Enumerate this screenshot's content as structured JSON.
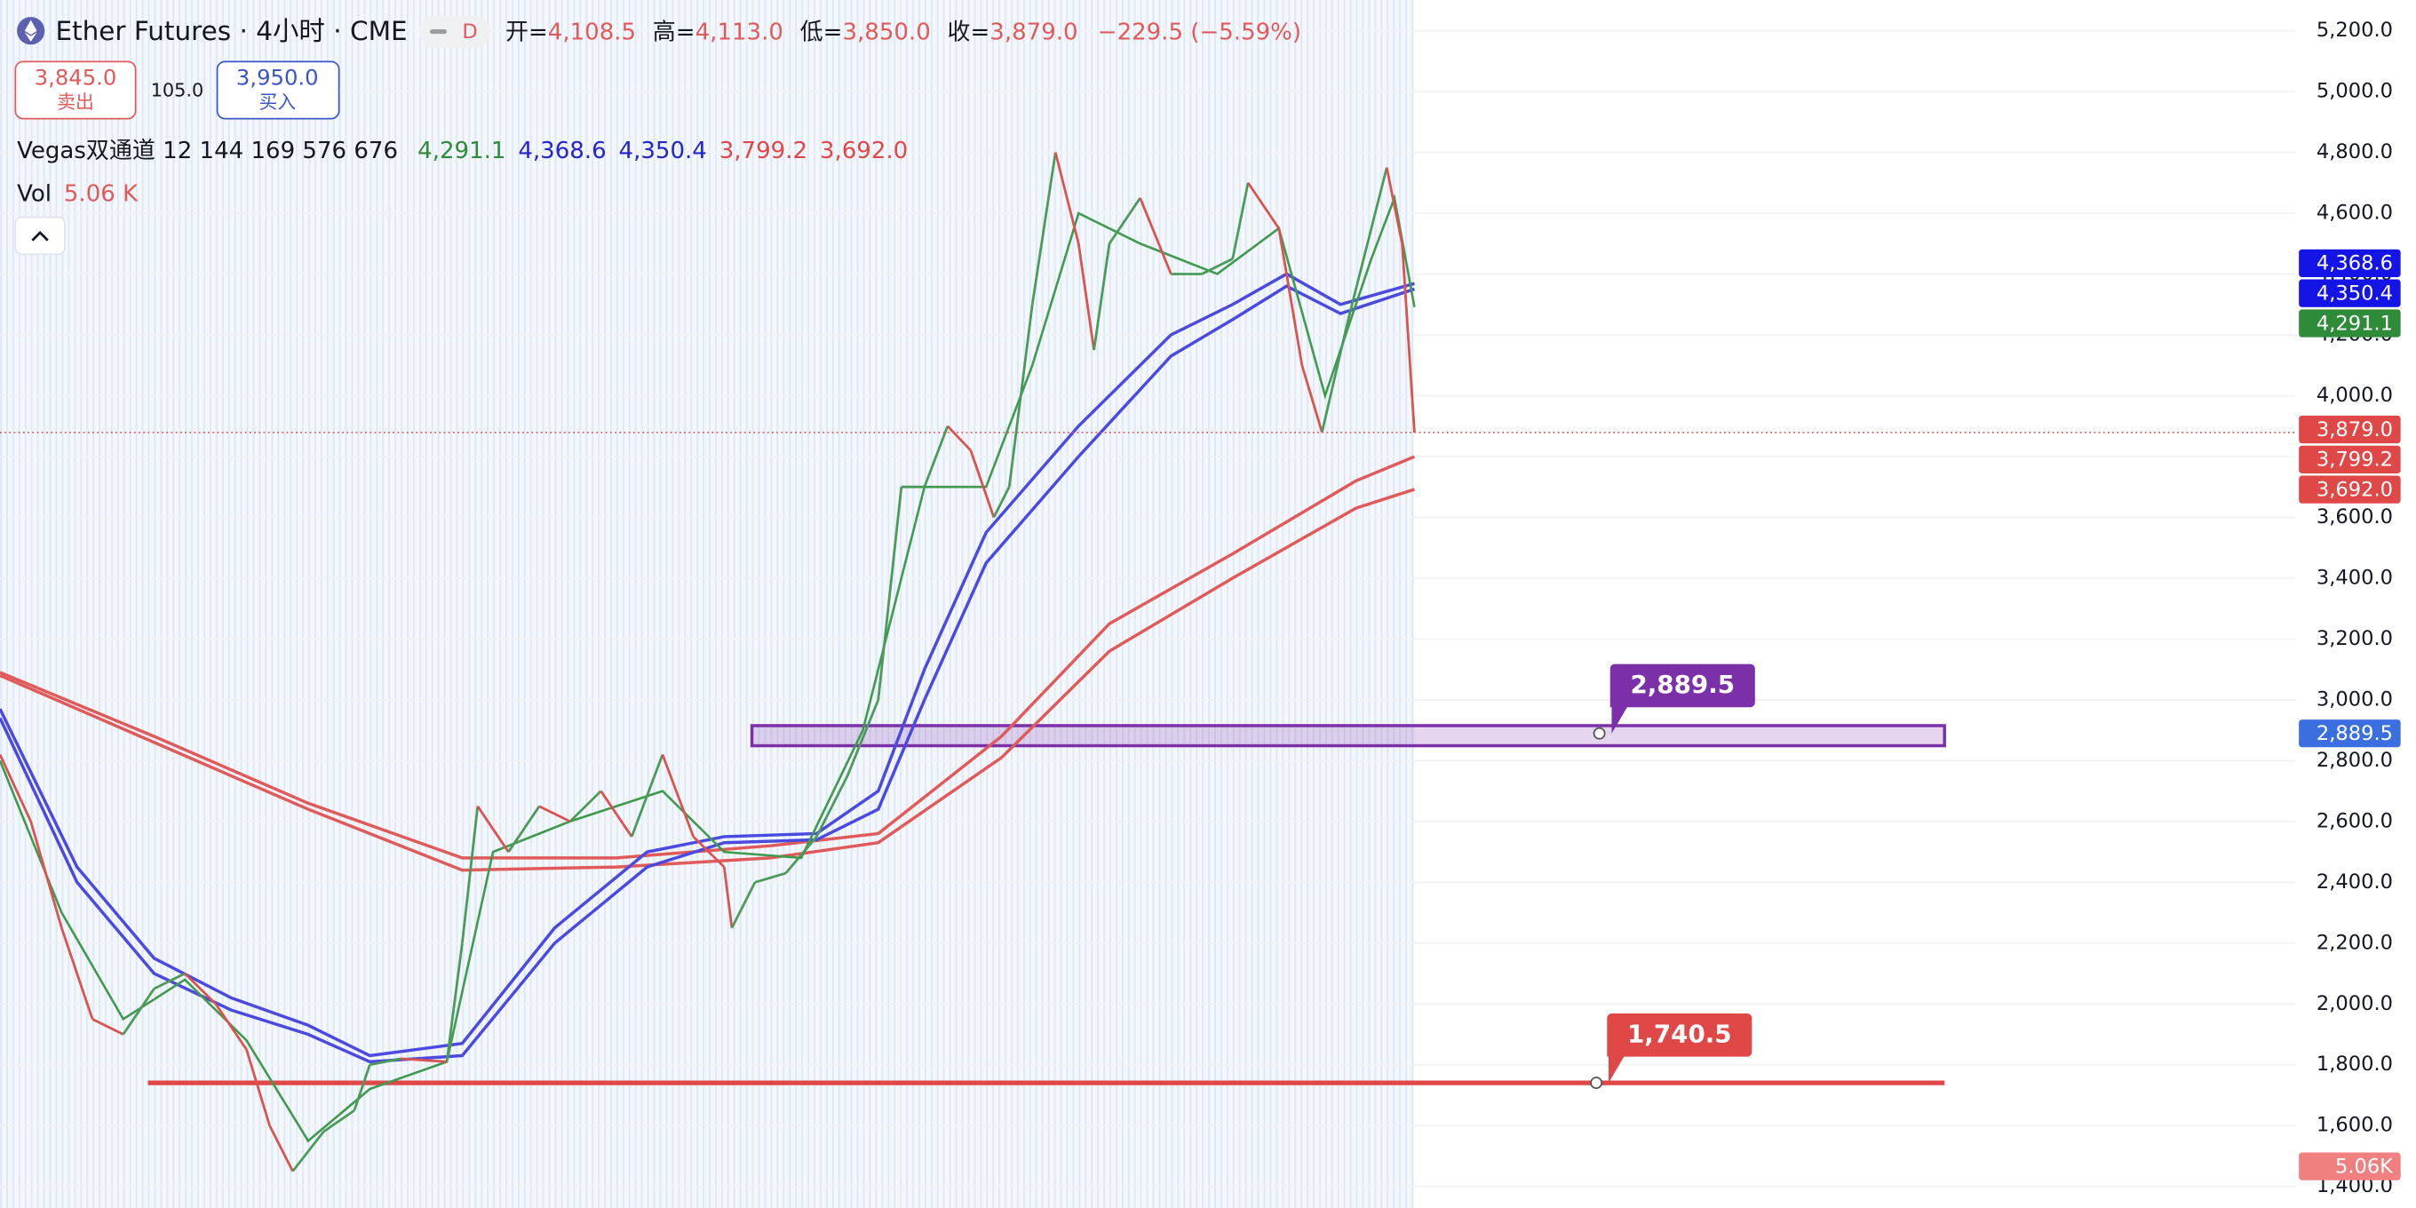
{
  "header": {
    "title": "Ether Futures · 4小时 · CME",
    "badge": "D",
    "ohlc": [
      {
        "label": "开=",
        "value": "4,108.5"
      },
      {
        "label": "高=",
        "value": "4,113.0"
      },
      {
        "label": "低=",
        "value": "3,850.0"
      },
      {
        "label": "收=",
        "value": "3,879.0"
      }
    ],
    "change": "−229.5 (−5.59%)",
    "sell": {
      "price": "3,845.0",
      "label": "卖出"
    },
    "spread": "105.0",
    "buy": {
      "price": "3,950.0",
      "label": "买入"
    },
    "indicator": {
      "name": "Vegas双通道 12 144 169 576 676",
      "values": [
        {
          "text": "4,291.1",
          "color": "#2e8b3a"
        },
        {
          "text": "4,368.6",
          "color": "#2424c8"
        },
        {
          "text": "4,350.4",
          "color": "#2424c8"
        },
        {
          "text": "3,799.2",
          "color": "#e04848"
        },
        {
          "text": "3,692.0",
          "color": "#e04848"
        }
      ]
    },
    "volume": {
      "name": "Vol",
      "value": "5.06 K"
    }
  },
  "chart_data": {
    "type": "line",
    "xlim": [
      0,
      1568
    ],
    "ylim": [
      1329,
      5301
    ],
    "yticks": [
      {
        "value": 1400,
        "label": "1,400.0"
      },
      {
        "value": 1600,
        "label": "1,600.0"
      },
      {
        "value": 1800,
        "label": "1,800.0"
      },
      {
        "value": 2000,
        "label": "2,000.0"
      },
      {
        "value": 2200,
        "label": "2,200.0"
      },
      {
        "value": 2400,
        "label": "2,400.0"
      },
      {
        "value": 2600,
        "label": "2,600.0"
      },
      {
        "value": 2800,
        "label": "2,800.0"
      },
      {
        "value": 3000,
        "label": "3,000.0"
      },
      {
        "value": 3200,
        "label": "3,200.0"
      },
      {
        "value": 3400,
        "label": "3,400.0"
      },
      {
        "value": 3600,
        "label": "3,600.0"
      },
      {
        "value": 3800,
        "label": "3,800.0"
      },
      {
        "value": 4000,
        "label": "4,000.0"
      },
      {
        "value": 4200,
        "label": "4,200.0"
      },
      {
        "value": 4400,
        "label": "4,400.0"
      },
      {
        "value": 4600,
        "label": "4,600.0"
      },
      {
        "value": 4800,
        "label": "4,800.0"
      },
      {
        "value": 5000,
        "label": "5,000.0"
      },
      {
        "value": 5200,
        "label": "5,200.0"
      }
    ],
    "grid": true,
    "price": {
      "up_color": "#4a9a5a",
      "down_color": "#d9534f",
      "x": [
        0,
        20,
        40,
        60,
        80,
        100,
        120,
        140,
        160,
        175,
        190,
        210,
        230,
        240,
        260,
        290,
        300,
        310,
        330,
        350,
        370,
        390,
        410,
        430,
        450,
        470,
        475,
        490,
        510,
        530,
        550,
        570,
        585,
        600,
        615,
        630,
        645,
        655,
        670,
        685,
        700,
        710,
        720,
        740,
        760,
        780,
        800,
        810,
        830,
        845,
        858,
        875,
        890,
        900,
        910,
        918
      ],
      "values": [
        2820,
        2600,
        2250,
        1950,
        1900,
        2050,
        2100,
        2000,
        1850,
        1600,
        1450,
        1580,
        1650,
        1800,
        1820,
        1810,
        2200,
        2650,
        2500,
        2650,
        2600,
        2700,
        2550,
        2820,
        2550,
        2450,
        2250,
        2400,
        2430,
        2550,
        2750,
        3000,
        3700,
        3700,
        3900,
        3820,
        3600,
        3700,
        4300,
        4800,
        4500,
        4150,
        4500,
        4650,
        4400,
        4400,
        4450,
        4700,
        4550,
        4100,
        3880,
        4250,
        4550,
        4750,
        4500,
        3879
      ]
    },
    "series": [
      {
        "color": "#e05a5a",
        "x": [
          0,
          100,
          200,
          300,
          400,
          500,
          570,
          650,
          720,
          800,
          880,
          918
        ],
        "values": [
          3090,
          2880,
          2660,
          2480,
          2480,
          2520,
          2560,
          2880,
          3250,
          3480,
          3720,
          3799.2
        ]
      },
      {
        "color": "#e05a5a",
        "x": [
          0,
          100,
          200,
          300,
          400,
          500,
          570,
          650,
          720,
          800,
          880,
          918
        ],
        "values": [
          3080,
          2860,
          2640,
          2440,
          2450,
          2480,
          2530,
          2810,
          3160,
          3400,
          3630,
          3692
        ]
      },
      {
        "color": "#4a4ae0",
        "x": [
          0,
          50,
          100,
          150,
          200,
          240,
          300,
          360,
          420,
          470,
          530,
          570,
          600,
          640,
          700,
          760,
          800,
          835,
          870,
          918
        ],
        "values": [
          2970,
          2450,
          2150,
          2020,
          1930,
          1830,
          1870,
          2250,
          2500,
          2550,
          2560,
          2700,
          3100,
          3550,
          3900,
          4200,
          4300,
          4400,
          4300,
          4368.6
        ]
      },
      {
        "color": "#4a4ae0",
        "x": [
          0,
          50,
          100,
          150,
          200,
          240,
          300,
          360,
          420,
          470,
          530,
          570,
          600,
          640,
          700,
          760,
          800,
          835,
          870,
          918
        ],
        "values": [
          2940,
          2400,
          2100,
          1980,
          1900,
          1810,
          1830,
          2200,
          2450,
          2530,
          2540,
          2640,
          3000,
          3450,
          3800,
          4130,
          4250,
          4360,
          4270,
          4350.4
        ]
      },
      {
        "color": "#3f9a4f",
        "x": [
          0,
          40,
          80,
          120,
          160,
          200,
          240,
          290,
          320,
          370,
          430,
          470,
          520,
          560,
          600,
          640,
          670,
          700,
          740,
          790,
          830,
          860,
          890,
          905,
          918
        ],
        "values": [
          2800,
          2300,
          1950,
          2080,
          1880,
          1550,
          1720,
          1810,
          2500,
          2600,
          2700,
          2500,
          2480,
          2900,
          3700,
          3700,
          4100,
          4600,
          4500,
          4400,
          4550,
          4000,
          4450,
          4650,
          4291.1
        ]
      }
    ],
    "last_price": {
      "value": 3879,
      "color": "#e05a5a"
    },
    "zone": {
      "value": 2889.5,
      "label": "2,889.5",
      "top": 2915,
      "bottom": 2849,
      "color": "#7b2fa8"
    },
    "level": {
      "value": 1740.5,
      "label": "1,740.5",
      "color": "#e04848"
    },
    "price_tags": [
      {
        "value": 4368.6,
        "label": "4,368.6",
        "color": "#1414e6"
      },
      {
        "value": 4350.4,
        "label": "4,350.4",
        "color": "#1414e6"
      },
      {
        "value": 4291.1,
        "label": "4,291.1",
        "color": "#2e8b3a"
      },
      {
        "value": 3879,
        "label": "3,879.0",
        "color": "#e04848"
      },
      {
        "value": 3799.2,
        "label": "3,799.2",
        "color": "#e04848"
      },
      {
        "value": 3692,
        "label": "3,692.0",
        "color": "#e04848"
      },
      {
        "value": 2889.5,
        "label": "2,889.5",
        "color": "#3b6fe0"
      }
    ],
    "volume_tag": {
      "label": "5.06K",
      "color": "#f08080"
    }
  }
}
